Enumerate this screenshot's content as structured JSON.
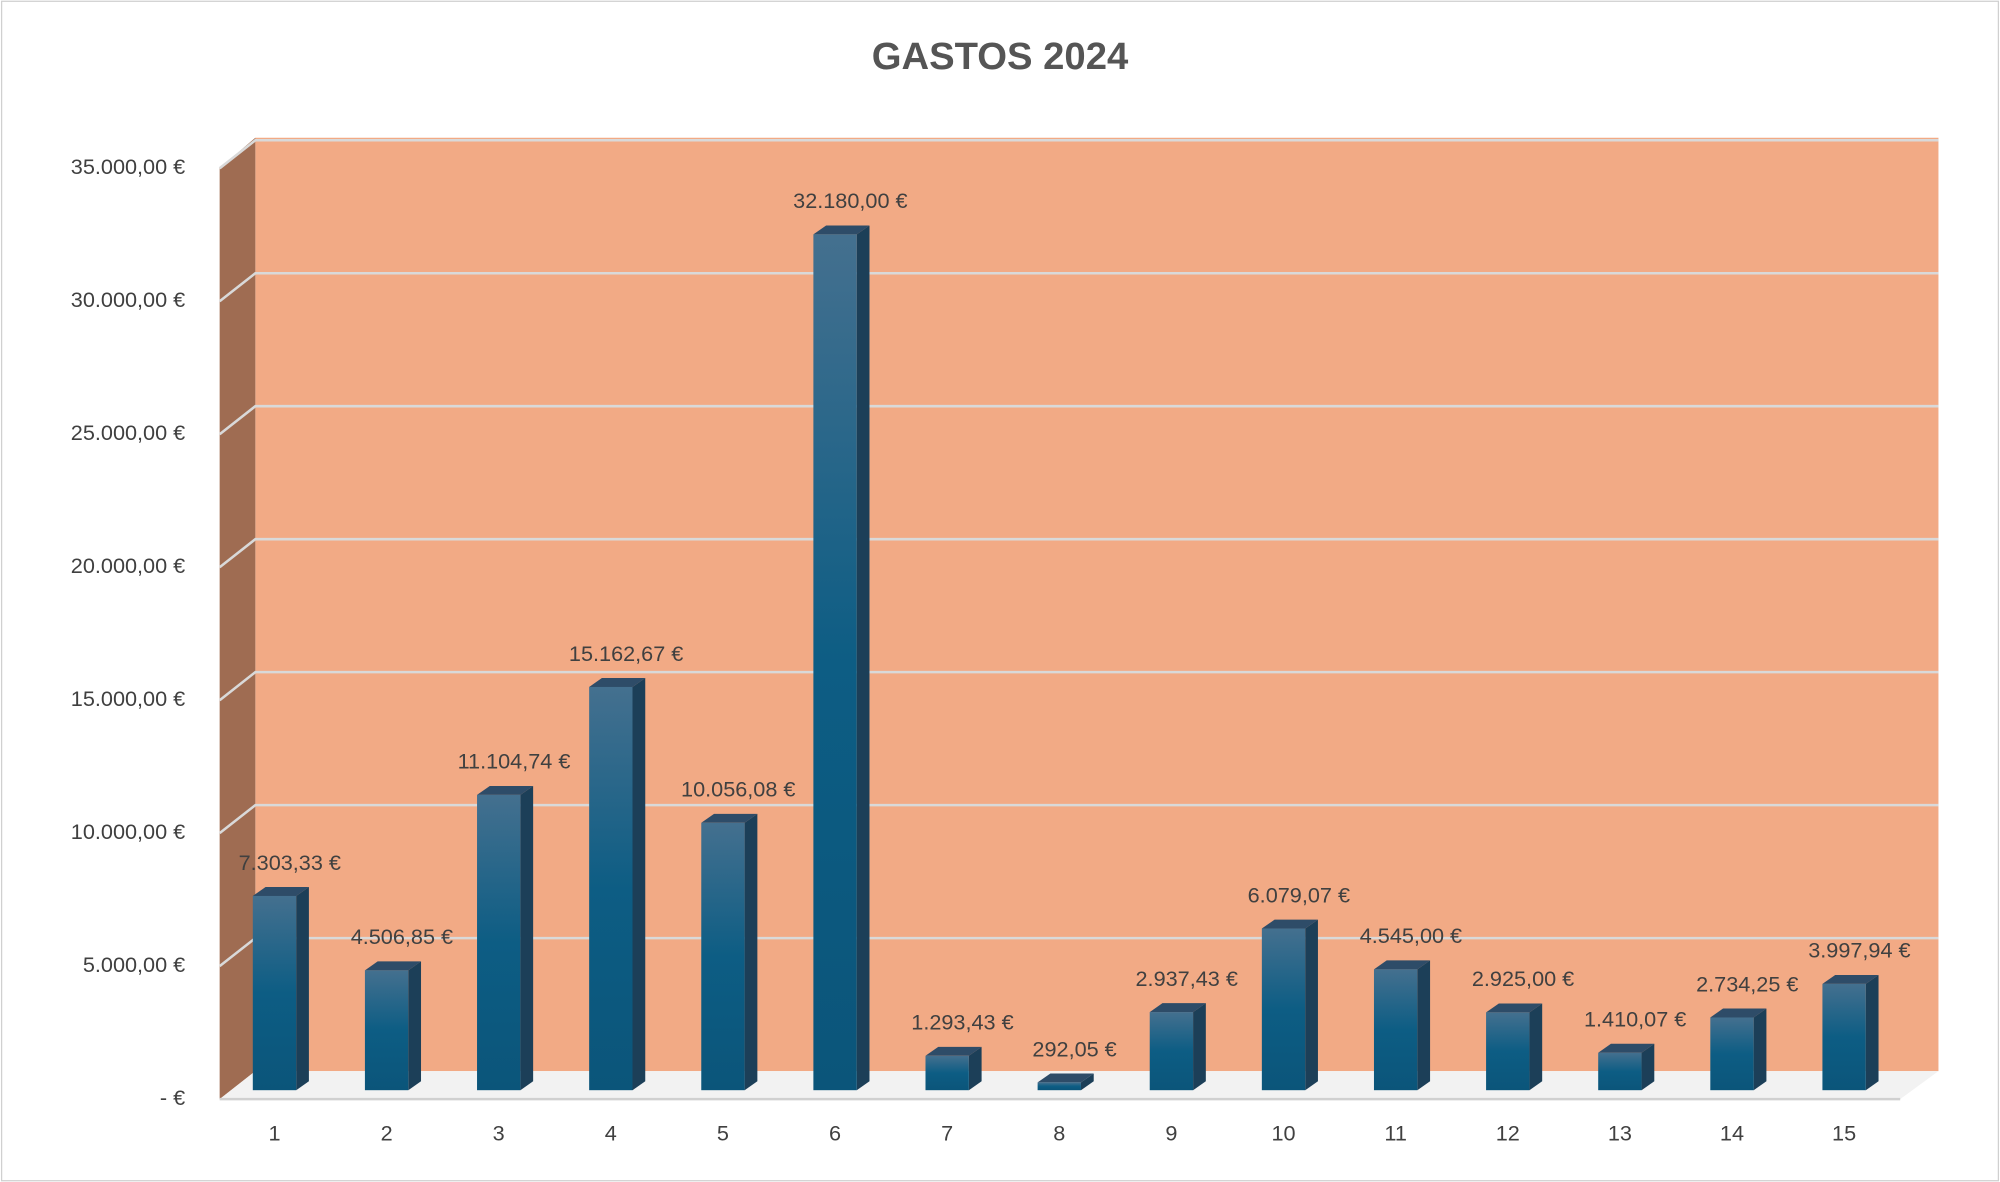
{
  "chart_data": {
    "type": "bar3d",
    "title": "GASTOS 2024",
    "categories": [
      "1",
      "2",
      "3",
      "4",
      "5",
      "6",
      "7",
      "8",
      "9",
      "10",
      "11",
      "12",
      "13",
      "14",
      "15"
    ],
    "values": [
      7303.33,
      4506.85,
      11104.74,
      15162.67,
      10056.08,
      32180.0,
      1293.43,
      292.05,
      2937.43,
      6079.07,
      4545.0,
      2925.0,
      1410.07,
      2734.25,
      3997.94
    ],
    "value_labels": [
      "7.303,33 €",
      "4.506,85 €",
      "11.104,74 €",
      "15.162,67 €",
      "10.056,08 €",
      "32.180,00 €",
      "1.293,43 €",
      "292,05 €",
      "2.937,43 €",
      "6.079,07 €",
      "4.545,00 €",
      "2.925,00 €",
      "1.410,07 €",
      "2.734,25 €",
      "3.997,94 €"
    ],
    "color": "#0c5a82",
    "ylim": [
      0,
      35000
    ],
    "yticks": [
      {
        "value": 0,
        "label": "-  €"
      },
      {
        "value": 5000,
        "label": "5.000,00 €"
      },
      {
        "value": 10000,
        "label": "10.000,00 €"
      },
      {
        "value": 15000,
        "label": "15.000,00 €"
      },
      {
        "value": 20000,
        "label": "20.000,00 €"
      },
      {
        "value": 25000,
        "label": "25.000,00 €"
      },
      {
        "value": 30000,
        "label": "30.000,00 €"
      },
      {
        "value": 35000,
        "label": "35.000,00 €"
      }
    ],
    "grid": true
  }
}
